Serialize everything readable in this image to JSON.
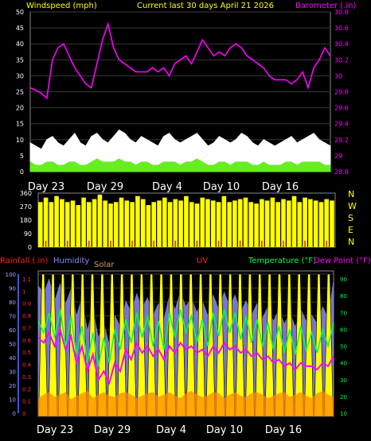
{
  "header": {
    "left_label": "Windspeed (mph)",
    "center_label": "Current last 30 days April 21 2026",
    "right_label": "Barometer (.in)"
  },
  "lower_legend": {
    "rainfall": "Rainfall (.in)",
    "humidity": "Humidity",
    "solar": "Solar",
    "uv": "UV",
    "temperature": "Temperature (°F)",
    "dew_point": "Dew Point (°F)"
  },
  "colors": {
    "background": "#000000",
    "wind_speed": "#ffffff",
    "wind_avg": "#66ee22",
    "barometer": "#ff00ff",
    "wind_direction": "#ffff00",
    "wind_dir_ticks": "#ff2020",
    "rainfall": "#ff2020",
    "rain_axis": "#3355ff",
    "humidity": "#8888ff",
    "solar": "#ffff00",
    "uv": "#ff8800",
    "temperature": "#00ff44",
    "dew_point": "#ff00ff",
    "header_text": "#ffff00"
  },
  "chart_data": [
    {
      "type": "line",
      "name": "wind-barometer",
      "x_ticks": [
        "Day 23",
        "Day 29",
        "Day 4",
        "Day 10",
        "Day 16"
      ],
      "left_axis": {
        "label": "Windspeed (mph)",
        "ticks": [
          "0",
          "5",
          "10",
          "15",
          "20",
          "25",
          "30",
          "35",
          "40",
          "45",
          "50"
        ],
        "range": [
          0,
          50
        ]
      },
      "right_axis": {
        "label": "Barometer (.in)",
        "ticks": [
          "28.8",
          "29",
          "29.2",
          "29.4",
          "29.6",
          "29.8",
          "30",
          "30.2",
          "30.4",
          "30.6",
          "30.8"
        ],
        "range": [
          28.8,
          30.8
        ]
      },
      "grid": true,
      "series": [
        {
          "name": "Barometer",
          "axis": "right",
          "values": [
            29.85,
            29.82,
            29.78,
            29.72,
            30.2,
            30.35,
            30.4,
            30.25,
            30.1,
            30.0,
            29.9,
            29.85,
            30.15,
            30.45,
            30.65,
            30.35,
            30.2,
            30.15,
            30.1,
            30.05,
            30.05,
            30.05,
            30.1,
            30.05,
            30.1,
            30.0,
            30.15,
            30.2,
            30.25,
            30.15,
            30.3,
            30.45,
            30.35,
            30.25,
            30.3,
            30.25,
            30.35,
            30.4,
            30.35,
            30.25,
            30.2,
            30.15,
            30.1,
            30.0,
            29.95,
            29.95,
            29.95,
            29.9,
            29.95,
            30.05,
            29.85,
            30.1,
            30.2,
            30.35,
            30.25
          ]
        },
        {
          "name": "Wind Gust",
          "axis": "left",
          "values": [
            9,
            8,
            7,
            10,
            11,
            9,
            8,
            10,
            12,
            9,
            8,
            11,
            12,
            10,
            9,
            11,
            13,
            12,
            10,
            9,
            11,
            10,
            9,
            8,
            11,
            12,
            10,
            9,
            10,
            11,
            12,
            10,
            8,
            9,
            11,
            10,
            9,
            10,
            12,
            11,
            9,
            8,
            10,
            9,
            8,
            9,
            10,
            11,
            9,
            10,
            11,
            12,
            10,
            9,
            8
          ]
        },
        {
          "name": "Wind Average",
          "axis": "left",
          "values": [
            3,
            2,
            2,
            3,
            3,
            2,
            2,
            3,
            3,
            2,
            2,
            3,
            4,
            3,
            3,
            3,
            4,
            3,
            3,
            2,
            3,
            3,
            2,
            2,
            3,
            3,
            3,
            2,
            3,
            3,
            4,
            3,
            2,
            2,
            3,
            3,
            2,
            3,
            3,
            3,
            2,
            2,
            3,
            2,
            2,
            2,
            3,
            3,
            2,
            3,
            3,
            3,
            3,
            2,
            2
          ]
        }
      ]
    },
    {
      "type": "bar",
      "name": "wind-direction",
      "x_ticks": [
        "Day 23",
        "Day 29",
        "Day 4",
        "Day 10",
        "Day 16"
      ],
      "left_axis": {
        "ticks": [
          "0",
          "90",
          "180",
          "270",
          "360"
        ],
        "range": [
          0,
          360
        ]
      },
      "right_labels": [
        "N",
        "W",
        "S",
        "E",
        "N"
      ],
      "series": [
        {
          "name": "Wind Direction",
          "values": [
            300,
            330,
            300,
            340,
            320,
            300,
            310,
            280,
            330,
            300,
            320,
            350,
            310,
            290,
            300,
            330,
            310,
            300,
            340,
            320,
            280,
            300,
            310,
            330,
            300,
            320,
            310,
            340,
            300,
            290,
            330,
            320,
            310,
            300,
            340,
            300,
            310,
            320,
            330,
            300,
            290,
            320,
            310,
            330,
            300,
            320,
            310,
            340,
            300,
            330,
            320,
            310,
            300,
            320,
            310
          ]
        }
      ]
    },
    {
      "type": "line",
      "name": "rain-humidity-solar-uv-temperature",
      "x_ticks": [
        "Day 23",
        "Day 29",
        "Day 4",
        "Day 10",
        "Day 16"
      ],
      "rain_axis": {
        "label": "Rainfall (.in)",
        "ticks": [
          "0",
          "0.1",
          "0.2",
          "0.3",
          "0.4",
          "0.5",
          "0.6",
          "0.7",
          "0.8",
          "0.9",
          "1",
          "1.1"
        ],
        "range": [
          0,
          1.2
        ]
      },
      "humidity_axis": {
        "label": "Humidity",
        "ticks": [
          "0",
          "10",
          "20",
          "30",
          "40",
          "50",
          "60",
          "70",
          "80",
          "90",
          "100"
        ],
        "range": [
          0,
          100
        ]
      },
      "temp_axis": {
        "label": "Temperature (°F)",
        "ticks": [
          "10",
          "20",
          "30",
          "40",
          "50",
          "60",
          "70",
          "80",
          "90"
        ],
        "range": [
          8,
          95
        ]
      },
      "grid": true,
      "series": [
        {
          "name": "Temperature",
          "axis": "temp",
          "values": [
            65,
            58,
            70,
            55,
            72,
            50,
            68,
            45,
            62,
            40,
            58,
            38,
            55,
            40,
            60,
            48,
            66,
            52,
            70,
            55,
            68,
            50,
            65,
            48,
            70,
            55,
            72,
            58,
            68,
            52,
            66,
            50,
            70,
            56,
            72,
            58,
            70,
            54,
            68,
            52,
            66,
            50,
            64,
            48,
            62,
            46,
            60,
            45,
            62,
            48,
            58,
            46,
            60,
            50,
            64
          ]
        },
        {
          "name": "Dew Point",
          "axis": "temp",
          "values": [
            55,
            52,
            58,
            50,
            60,
            48,
            56,
            40,
            50,
            35,
            45,
            30,
            35,
            28,
            40,
            35,
            48,
            42,
            52,
            46,
            50,
            44,
            48,
            42,
            50,
            46,
            52,
            48,
            50,
            46,
            48,
            44,
            50,
            46,
            52,
            48,
            50,
            46,
            48,
            44,
            46,
            42,
            44,
            40,
            42,
            38,
            40,
            36,
            40,
            38,
            38,
            36,
            40,
            38,
            44
          ]
        },
        {
          "name": "Humidity",
          "axis": "humidity",
          "values": [
            90,
            85,
            95,
            80,
            92,
            78,
            88,
            70,
            82,
            60,
            75,
            55,
            65,
            50,
            70,
            62,
            80,
            72,
            85,
            75,
            82,
            70,
            78,
            68,
            84,
            74,
            86,
            76,
            82,
            72,
            80,
            70,
            84,
            74,
            86,
            76,
            84,
            72,
            80,
            70,
            78,
            68,
            76,
            66,
            74,
            64,
            72,
            62,
            74,
            66,
            70,
            64,
            76,
            68,
            95
          ]
        },
        {
          "name": "UV",
          "axis": "rain",
          "values": [
            0.15,
            0.18,
            0.2,
            0.16,
            0.18,
            0.2,
            0.14,
            0.17,
            0.19,
            0.21,
            0.15,
            0.18,
            0.2,
            0.17,
            0.16,
            0.19,
            0.2,
            0.18,
            0.15,
            0.17,
            0.19,
            0.2,
            0.16,
            0.18,
            0.2,
            0.17,
            0.15,
            0.19,
            0.21,
            0.18,
            0.16,
            0.17,
            0.2,
            0.19,
            0.15,
            0.18,
            0.2,
            0.17,
            0.16,
            0.19,
            0.2,
            0.18,
            0.15,
            0.17,
            0.19,
            0.2,
            0.16,
            0.18,
            0.2,
            0.17,
            0.15,
            0.19,
            0.21,
            0.18,
            0.16
          ]
        }
      ],
      "solar_days": 30
    }
  ]
}
